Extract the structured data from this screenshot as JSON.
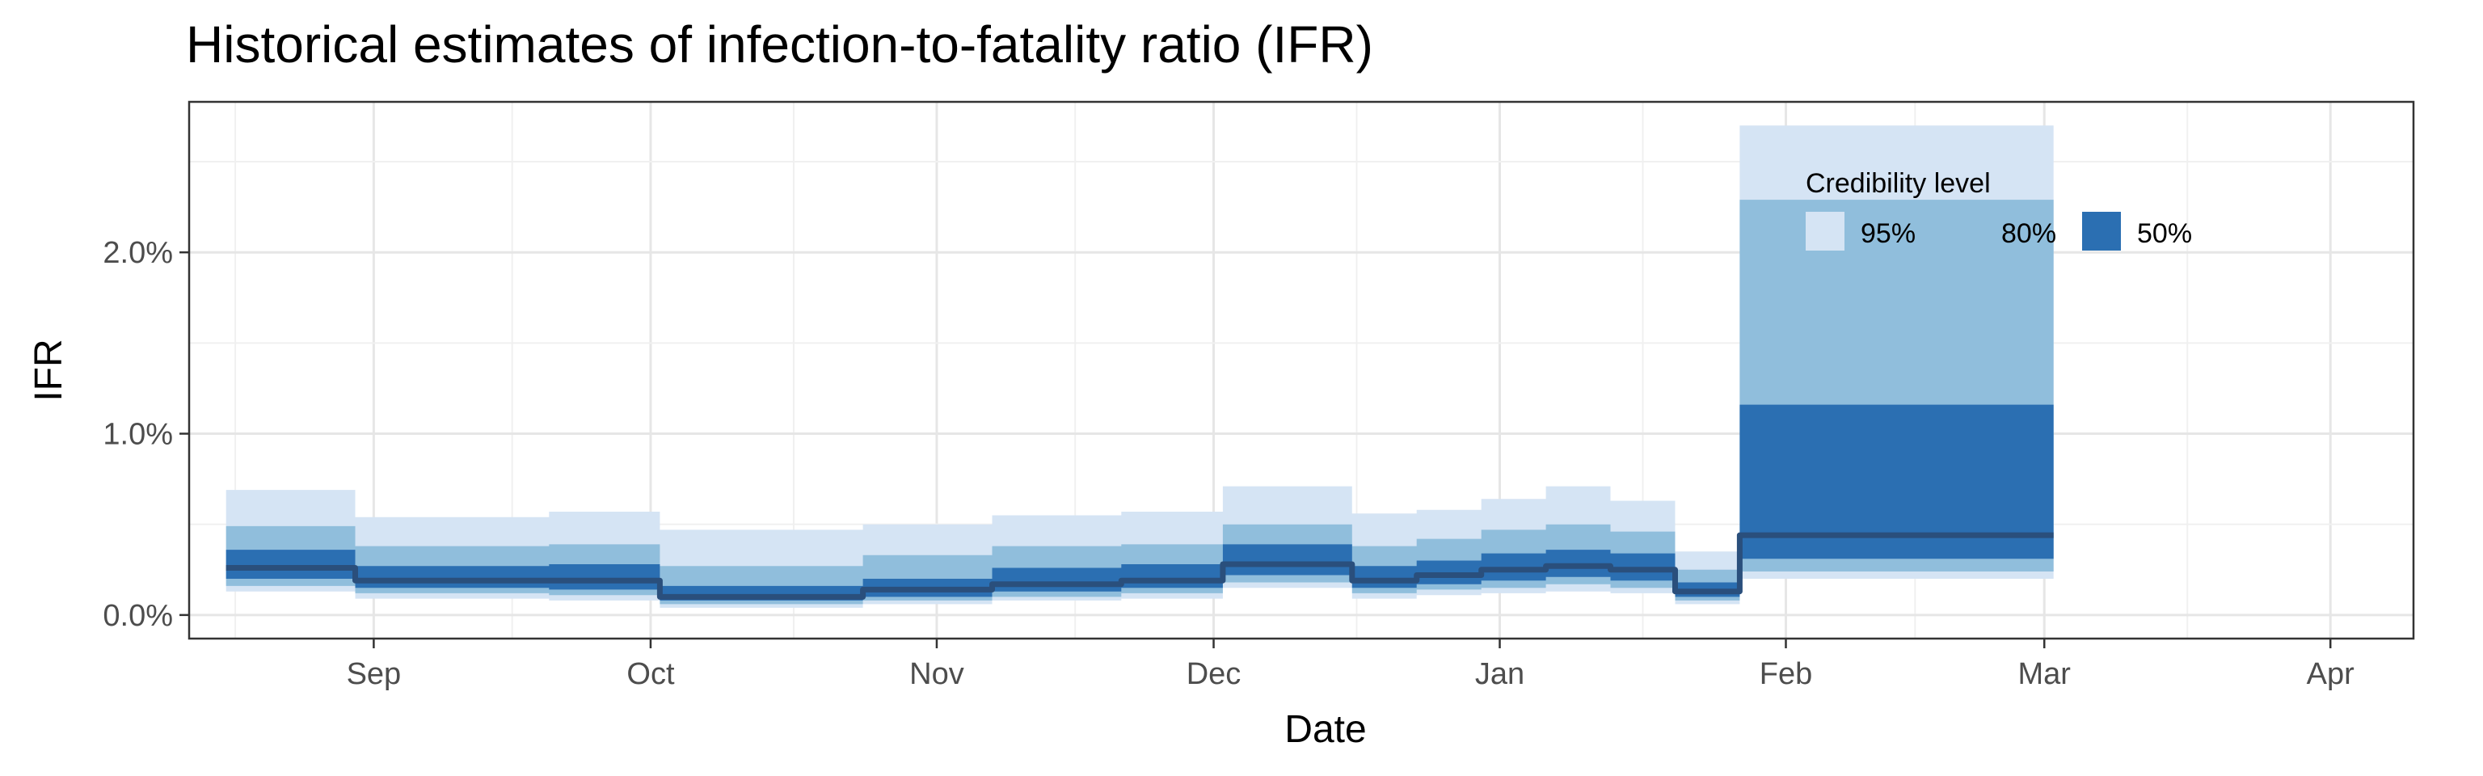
{
  "chart_data": {
    "type": "area",
    "title": "Historical estimates of infection-to-fatality ratio (IFR)",
    "xlabel": "Date",
    "ylabel": "IFR",
    "xlim": [
      "2020-08-12",
      "2021-04-10"
    ],
    "ylim": [
      -0.13,
      2.83
    ],
    "x_ticks": [
      {
        "date": "2020-09-01",
        "label": "Sep"
      },
      {
        "date": "2020-10-01",
        "label": "Oct"
      },
      {
        "date": "2020-11-01",
        "label": "Nov"
      },
      {
        "date": "2020-12-01",
        "label": "Dec"
      },
      {
        "date": "2021-01-01",
        "label": "Jan"
      },
      {
        "date": "2021-02-01",
        "label": "Feb"
      },
      {
        "date": "2021-03-01",
        "label": "Mar"
      },
      {
        "date": "2021-04-01",
        "label": "Apr"
      }
    ],
    "y_ticks": [
      {
        "value": 0,
        "label": "0.0%"
      },
      {
        "value": 1,
        "label": "1.0%"
      },
      {
        "value": 2,
        "label": "2.0%"
      }
    ],
    "grid": true,
    "legend": {
      "title": "Credibility level",
      "placement": "top-right",
      "items": [
        {
          "label": "95%",
          "color": "#d5e4f4"
        },
        {
          "label": "80%",
          "color": "#90bedc"
        },
        {
          "label": "50%",
          "color": "#2b6fb2"
        }
      ]
    },
    "colors": {
      "ci95": "#d5e4f4",
      "ci80": "#90bedc",
      "ci50": "#2b6fb2",
      "median": "#2a4f7c"
    },
    "periods": [
      {
        "start": "2020-08-16",
        "end": "2020-08-29",
        "median": 0.26,
        "lo50": 0.2,
        "hi50": 0.36,
        "lo80": 0.16,
        "hi80": 0.49,
        "lo95": 0.13,
        "hi95": 0.69
      },
      {
        "start": "2020-08-30",
        "end": "2020-09-19",
        "median": 0.19,
        "lo50": 0.15,
        "hi50": 0.27,
        "lo80": 0.12,
        "hi80": 0.38,
        "lo95": 0.09,
        "hi95": 0.54
      },
      {
        "start": "2020-09-20",
        "end": "2020-10-01",
        "median": 0.19,
        "lo50": 0.14,
        "hi50": 0.28,
        "lo80": 0.11,
        "hi80": 0.39,
        "lo95": 0.08,
        "hi95": 0.57
      },
      {
        "start": "2020-10-02",
        "end": "2020-10-23",
        "median": 0.1,
        "lo50": 0.08,
        "hi50": 0.16,
        "lo80": 0.06,
        "hi80": 0.27,
        "lo95": 0.04,
        "hi95": 0.47
      },
      {
        "start": "2020-10-24",
        "end": "2020-11-06",
        "median": 0.14,
        "lo50": 0.1,
        "hi50": 0.2,
        "lo80": 0.08,
        "hi80": 0.33,
        "lo95": 0.06,
        "hi95": 0.5
      },
      {
        "start": "2020-11-07",
        "end": "2020-11-20",
        "median": 0.17,
        "lo50": 0.13,
        "hi50": 0.26,
        "lo80": 0.1,
        "hi80": 0.38,
        "lo95": 0.08,
        "hi95": 0.55
      },
      {
        "start": "2020-11-21",
        "end": "2020-12-01",
        "median": 0.19,
        "lo50": 0.15,
        "hi50": 0.28,
        "lo80": 0.12,
        "hi80": 0.39,
        "lo95": 0.09,
        "hi95": 0.57
      },
      {
        "start": "2020-12-02",
        "end": "2020-12-15",
        "median": 0.28,
        "lo50": 0.22,
        "hi50": 0.39,
        "lo80": 0.18,
        "hi80": 0.5,
        "lo95": 0.15,
        "hi95": 0.71
      },
      {
        "start": "2020-12-16",
        "end": "2020-12-22",
        "median": 0.19,
        "lo50": 0.15,
        "hi50": 0.27,
        "lo80": 0.12,
        "hi80": 0.38,
        "lo95": 0.09,
        "hi95": 0.56
      },
      {
        "start": "2020-12-23",
        "end": "2020-12-29",
        "median": 0.22,
        "lo50": 0.17,
        "hi50": 0.3,
        "lo80": 0.14,
        "hi80": 0.42,
        "lo95": 0.11,
        "hi95": 0.58
      },
      {
        "start": "2020-12-30",
        "end": "2021-01-05",
        "median": 0.25,
        "lo50": 0.19,
        "hi50": 0.34,
        "lo80": 0.15,
        "hi80": 0.47,
        "lo95": 0.12,
        "hi95": 0.64
      },
      {
        "start": "2021-01-06",
        "end": "2021-01-12",
        "median": 0.27,
        "lo50": 0.21,
        "hi50": 0.36,
        "lo80": 0.17,
        "hi80": 0.5,
        "lo95": 0.13,
        "hi95": 0.71
      },
      {
        "start": "2021-01-13",
        "end": "2021-01-19",
        "median": 0.25,
        "lo50": 0.19,
        "hi50": 0.34,
        "lo80": 0.15,
        "hi80": 0.46,
        "lo95": 0.12,
        "hi95": 0.63
      },
      {
        "start": "2021-01-20",
        "end": "2021-01-26",
        "median": 0.13,
        "lo50": 0.1,
        "hi50": 0.18,
        "lo80": 0.08,
        "hi80": 0.25,
        "lo95": 0.06,
        "hi95": 0.35
      },
      {
        "start": "2021-01-27",
        "end": "2021-03-02",
        "median": 0.44,
        "lo50": 0.31,
        "hi50": 1.16,
        "lo80": 0.24,
        "hi80": 2.29,
        "lo95": 0.2,
        "hi95": 2.7
      }
    ]
  }
}
